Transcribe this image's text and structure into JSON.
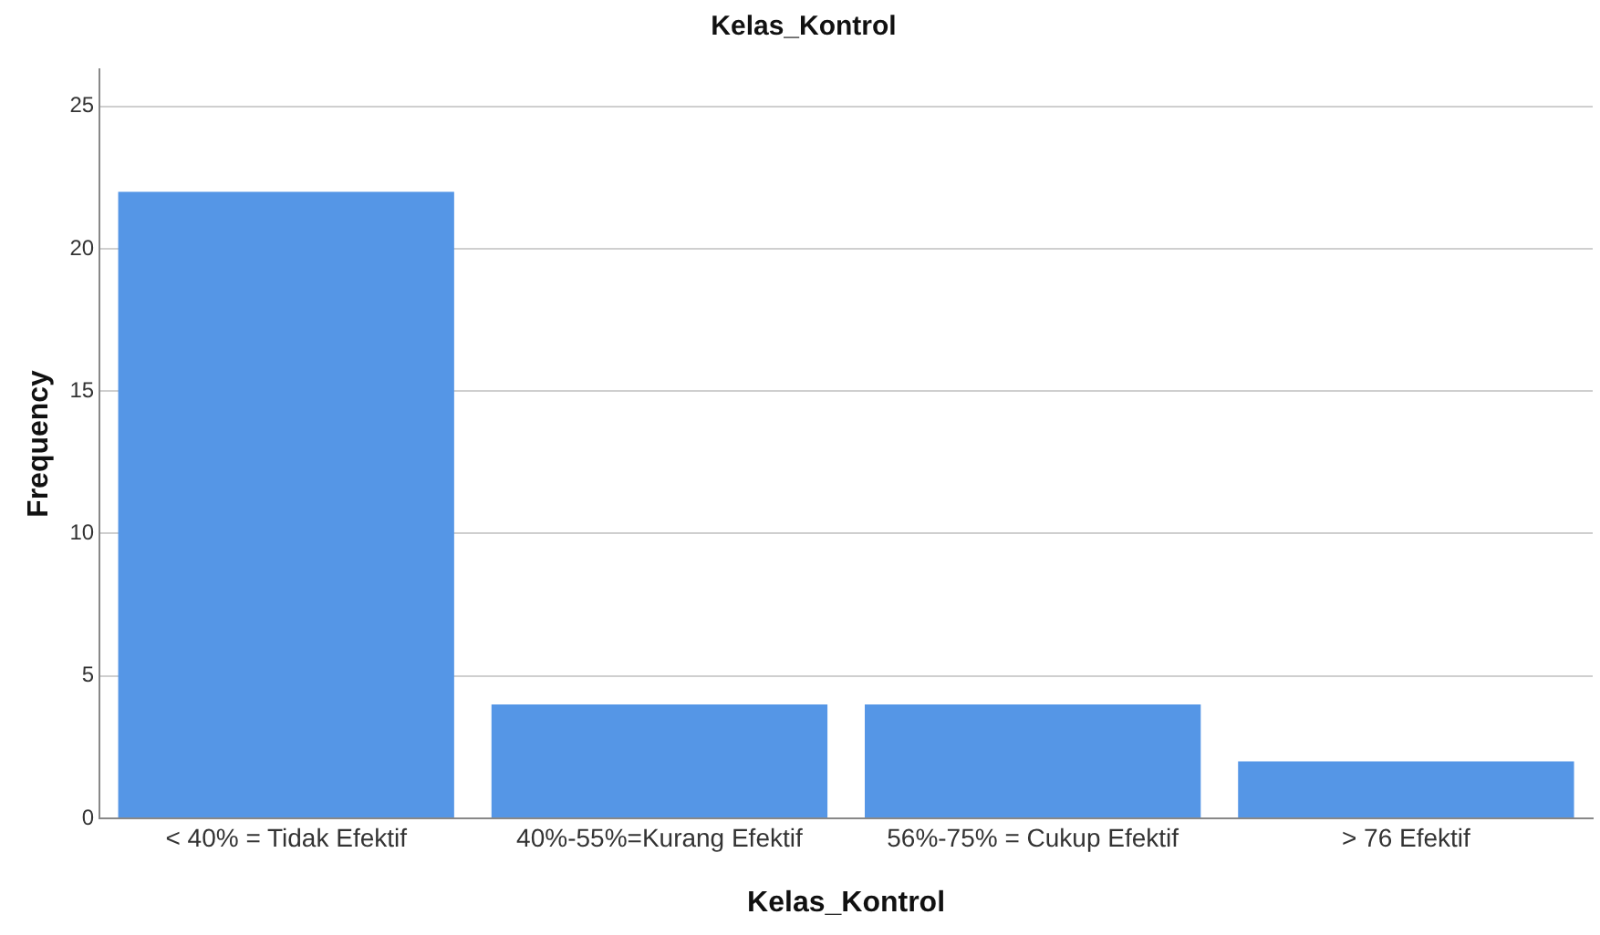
{
  "chart_data": {
    "type": "bar",
    "title": "Kelas_Kontrol",
    "xlabel": "Kelas_Kontrol",
    "ylabel": "Frequency",
    "categories": [
      "< 40% = Tidak Efektif",
      "40%-55%=Kurang Efektif",
      "56%-75% = Cukup Efektif",
      "> 76 Efektif"
    ],
    "values": [
      22,
      4,
      4,
      2
    ],
    "color": "#5596e6",
    "ylim": [
      0,
      26.3
    ],
    "yticks": [
      0,
      5,
      10,
      15,
      20,
      25
    ],
    "grid": "y",
    "legend": false
  }
}
